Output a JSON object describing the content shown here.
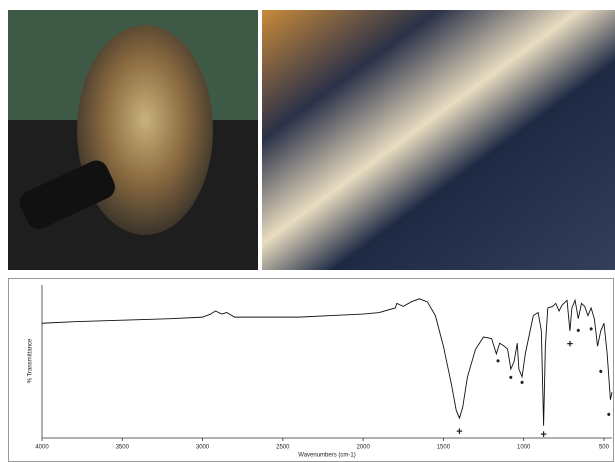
{
  "chart_data": {
    "type": "line",
    "xlabel": "Wavenumbers (cm-1)",
    "ylabel": "% Transmittance",
    "x": [
      4000,
      3800,
      3500,
      3200,
      3000,
      2950,
      2920,
      2880,
      2850,
      2800,
      2600,
      2400,
      2200,
      2000,
      1900,
      1800,
      1790,
      1750,
      1700,
      1650,
      1600,
      1550,
      1500,
      1450,
      1420,
      1400,
      1380,
      1350,
      1300,
      1250,
      1200,
      1170,
      1150,
      1120,
      1100,
      1080,
      1060,
      1040,
      1030,
      1010,
      990,
      960,
      940,
      910,
      890,
      876,
      865,
      850,
      820,
      800,
      780,
      760,
      730,
      712,
      700,
      680,
      660,
      640,
      620,
      600,
      580,
      560,
      540,
      520,
      500,
      480,
      460,
      450
    ],
    "values": [
      75,
      76,
      77,
      78,
      79,
      81,
      83,
      81,
      82,
      79,
      79,
      79,
      80,
      81,
      82,
      85,
      88,
      86,
      89,
      91,
      89,
      80,
      60,
      35,
      18,
      13,
      20,
      40,
      58,
      66,
      65,
      55,
      62,
      60,
      58,
      45,
      50,
      62,
      45,
      40,
      55,
      70,
      80,
      82,
      70,
      8,
      60,
      85,
      86,
      88,
      83,
      87,
      90,
      70,
      85,
      90,
      78,
      88,
      86,
      80,
      85,
      78,
      60,
      70,
      75,
      55,
      25,
      30
    ],
    "color": "#111111",
    "xlim": [
      4000,
      450
    ],
    "ylim": [
      0,
      100
    ],
    "xticks": [
      4000,
      3500,
      3000,
      2500,
      2000,
      1500,
      1000,
      500
    ],
    "annotations": [
      {
        "text": "+",
        "x": 1400,
        "y": 4
      },
      {
        "text": "+",
        "x": 876,
        "y": 2
      },
      {
        "text": "+",
        "x": 712,
        "y": 61
      },
      {
        "text": "•",
        "x": 1160,
        "y": 50
      },
      {
        "text": "•",
        "x": 1080,
        "y": 39
      },
      {
        "text": "•",
        "x": 1010,
        "y": 36
      },
      {
        "text": "•",
        "x": 660,
        "y": 70
      },
      {
        "text": "•",
        "x": 580,
        "y": 71
      },
      {
        "text": "•",
        "x": 520,
        "y": 43
      },
      {
        "text": "•",
        "x": 470,
        "y": 15
      }
    ]
  }
}
